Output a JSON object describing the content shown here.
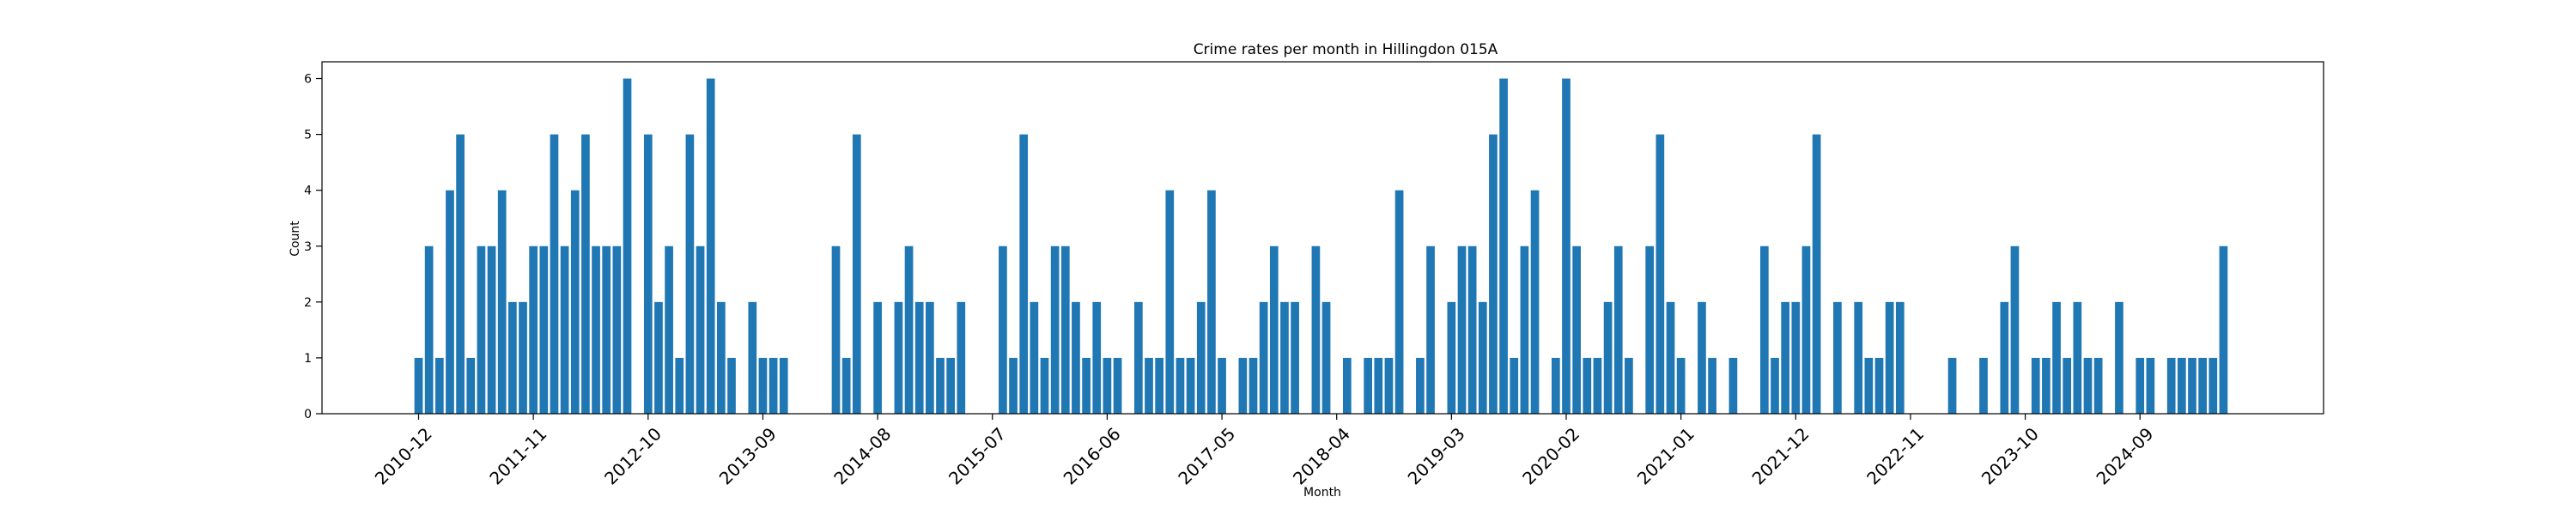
{
  "chart_data": {
    "type": "bar",
    "title": "Crime rates per month in Hillingdon 015A",
    "xlabel": "Month",
    "ylabel": "Count",
    "ylim": [
      0,
      6.3
    ],
    "yticks": [
      0,
      1,
      2,
      3,
      4,
      5,
      6
    ],
    "grid": false,
    "bar_color": "#1f77b4",
    "start_month": "2010-12",
    "xtick_labels": [
      "2010-12",
      "2011-11",
      "2012-10",
      "2013-09",
      "2014-08",
      "2015-07",
      "2016-06",
      "2017-05",
      "2018-04",
      "2019-03",
      "2020-02",
      "2021-01",
      "2021-12",
      "2022-11",
      "2023-10",
      "2024-09"
    ],
    "values": [
      1,
      3,
      1,
      4,
      5,
      1,
      3,
      3,
      4,
      2,
      2,
      3,
      3,
      5,
      3,
      4,
      5,
      3,
      3,
      3,
      6,
      0,
      5,
      2,
      3,
      1,
      5,
      3,
      6,
      2,
      1,
      0,
      2,
      1,
      1,
      1,
      0,
      0,
      0,
      0,
      3,
      1,
      5,
      0,
      2,
      0,
      2,
      3,
      2,
      2,
      1,
      1,
      2,
      0,
      0,
      0,
      3,
      1,
      5,
      2,
      1,
      3,
      3,
      2,
      1,
      2,
      1,
      1,
      0,
      2,
      1,
      1,
      4,
      1,
      1,
      2,
      4,
      1,
      0,
      1,
      1,
      2,
      3,
      2,
      2,
      0,
      3,
      2,
      0,
      1,
      0,
      1,
      1,
      1,
      4,
      0,
      1,
      3,
      0,
      2,
      3,
      3,
      2,
      5,
      6,
      1,
      3,
      4,
      0,
      1,
      6,
      3,
      1,
      1,
      2,
      3,
      1,
      0,
      3,
      5,
      2,
      1,
      0,
      2,
      1,
      0,
      1,
      0,
      0,
      3,
      1,
      2,
      2,
      3,
      5,
      0,
      2,
      0,
      2,
      1,
      1,
      2,
      2,
      0,
      0,
      0,
      0,
      1,
      0,
      0,
      1,
      0,
      2,
      3,
      0,
      1,
      1,
      2,
      1,
      2,
      1,
      1,
      0,
      2,
      0,
      1,
      1,
      0,
      1,
      1,
      1,
      1,
      1,
      3
    ]
  }
}
